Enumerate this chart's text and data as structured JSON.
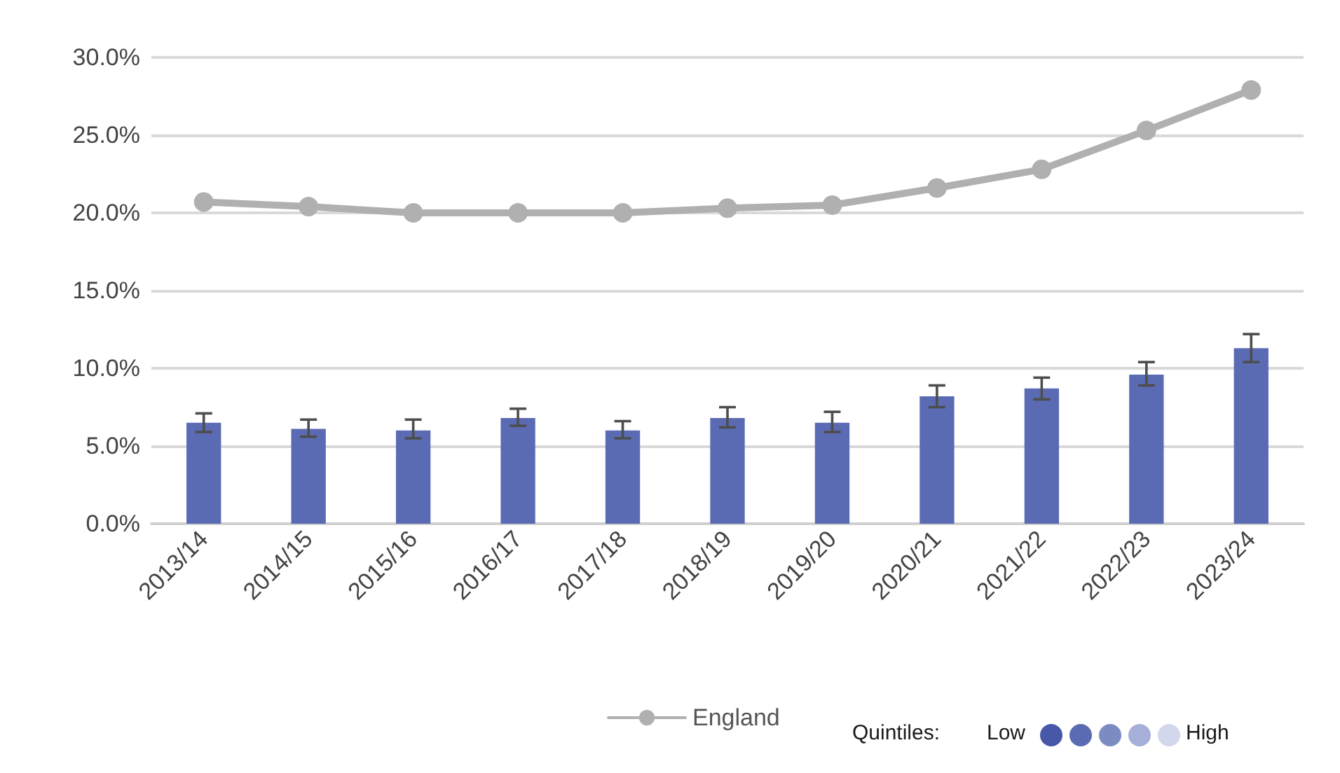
{
  "chart_data": {
    "type": "bar",
    "categories": [
      "2013/14",
      "2014/15",
      "2015/16",
      "2016/17",
      "2017/18",
      "2018/19",
      "2019/20",
      "2020/21",
      "2021/22",
      "2022/23",
      "2023/24"
    ],
    "series": [
      {
        "color": "#5b6bb3",
        "values": [
          6.5,
          6.1,
          6.0,
          6.8,
          6.0,
          6.8,
          6.5,
          8.2,
          8.7,
          9.6,
          11.3
        ],
        "errors": [
          [
            5.9,
            7.1
          ],
          [
            5.6,
            6.7
          ],
          [
            5.5,
            6.7
          ],
          [
            6.3,
            7.4
          ],
          [
            5.5,
            6.6
          ],
          [
            6.2,
            7.5
          ],
          [
            5.9,
            7.2
          ],
          [
            7.5,
            8.9
          ],
          [
            8.0,
            9.4
          ],
          [
            8.9,
            10.4
          ],
          [
            10.4,
            12.2
          ]
        ]
      },
      {
        "type": "line",
        "name": "England",
        "color": "#b0b0b0",
        "marker": "circle",
        "values": [
          20.7,
          20.4,
          20.0,
          20.0,
          20.0,
          20.3,
          20.5,
          21.6,
          22.8,
          25.3,
          27.9
        ]
      }
    ],
    "ylim": [
      0,
      30
    ],
    "yticks": [
      {
        "value": 0,
        "label": "0.0%"
      },
      {
        "value": 5,
        "label": "5.0%"
      },
      {
        "value": 10,
        "label": "10.0%"
      },
      {
        "value": 15,
        "label": "15.0%"
      },
      {
        "value": 20,
        "label": "20.0%"
      },
      {
        "value": 25,
        "label": "25.0%"
      },
      {
        "value": 30,
        "label": "30.0%"
      }
    ],
    "grid": "y",
    "legend": "bottom",
    "annotations": [
      "Quintiles:",
      "Low",
      "High"
    ]
  }
}
